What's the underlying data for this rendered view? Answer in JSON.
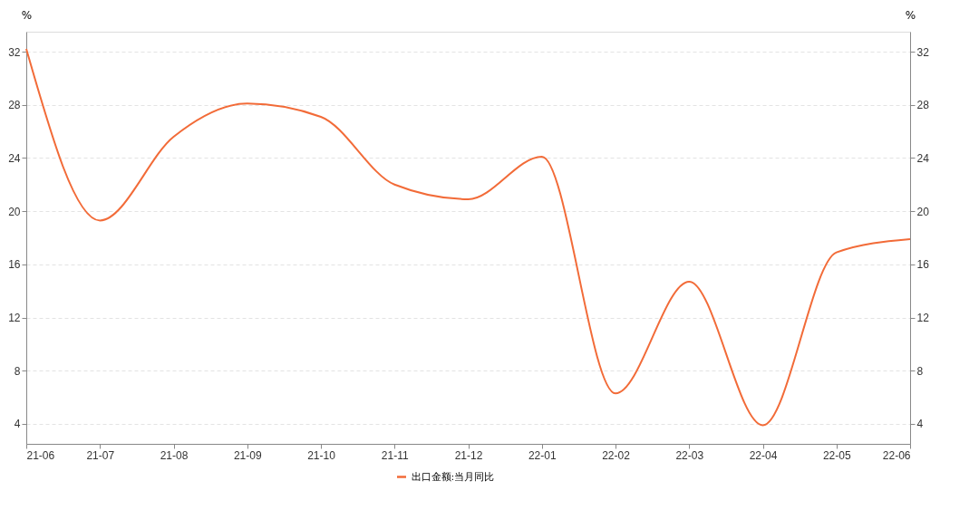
{
  "chart_data": {
    "type": "line",
    "categories": [
      "21-06",
      "21-07",
      "21-08",
      "21-09",
      "21-10",
      "21-11",
      "21-12",
      "22-01",
      "22-02",
      "22-03",
      "22-04",
      "22-05",
      "22-06"
    ],
    "series": [
      {
        "name": "出口金额:当月同比",
        "color": "#f26b38",
        "values": [
          32.2,
          19.3,
          25.6,
          28.1,
          27.1,
          22.0,
          20.9,
          24.1,
          6.3,
          14.7,
          3.9,
          16.9,
          17.9
        ]
      }
    ],
    "ylabel": "%",
    "y2label": "%",
    "ylim": [
      2.5,
      33.5
    ],
    "yticks": [
      4,
      8,
      12,
      16,
      20,
      24,
      28,
      32
    ],
    "y2lim": [
      2.5,
      33.5
    ],
    "y2ticks": [
      4,
      8,
      12,
      16,
      20,
      24,
      28,
      32
    ],
    "grid": "y",
    "legend": "bottom",
    "marker": "none",
    "line_style": "solid"
  }
}
